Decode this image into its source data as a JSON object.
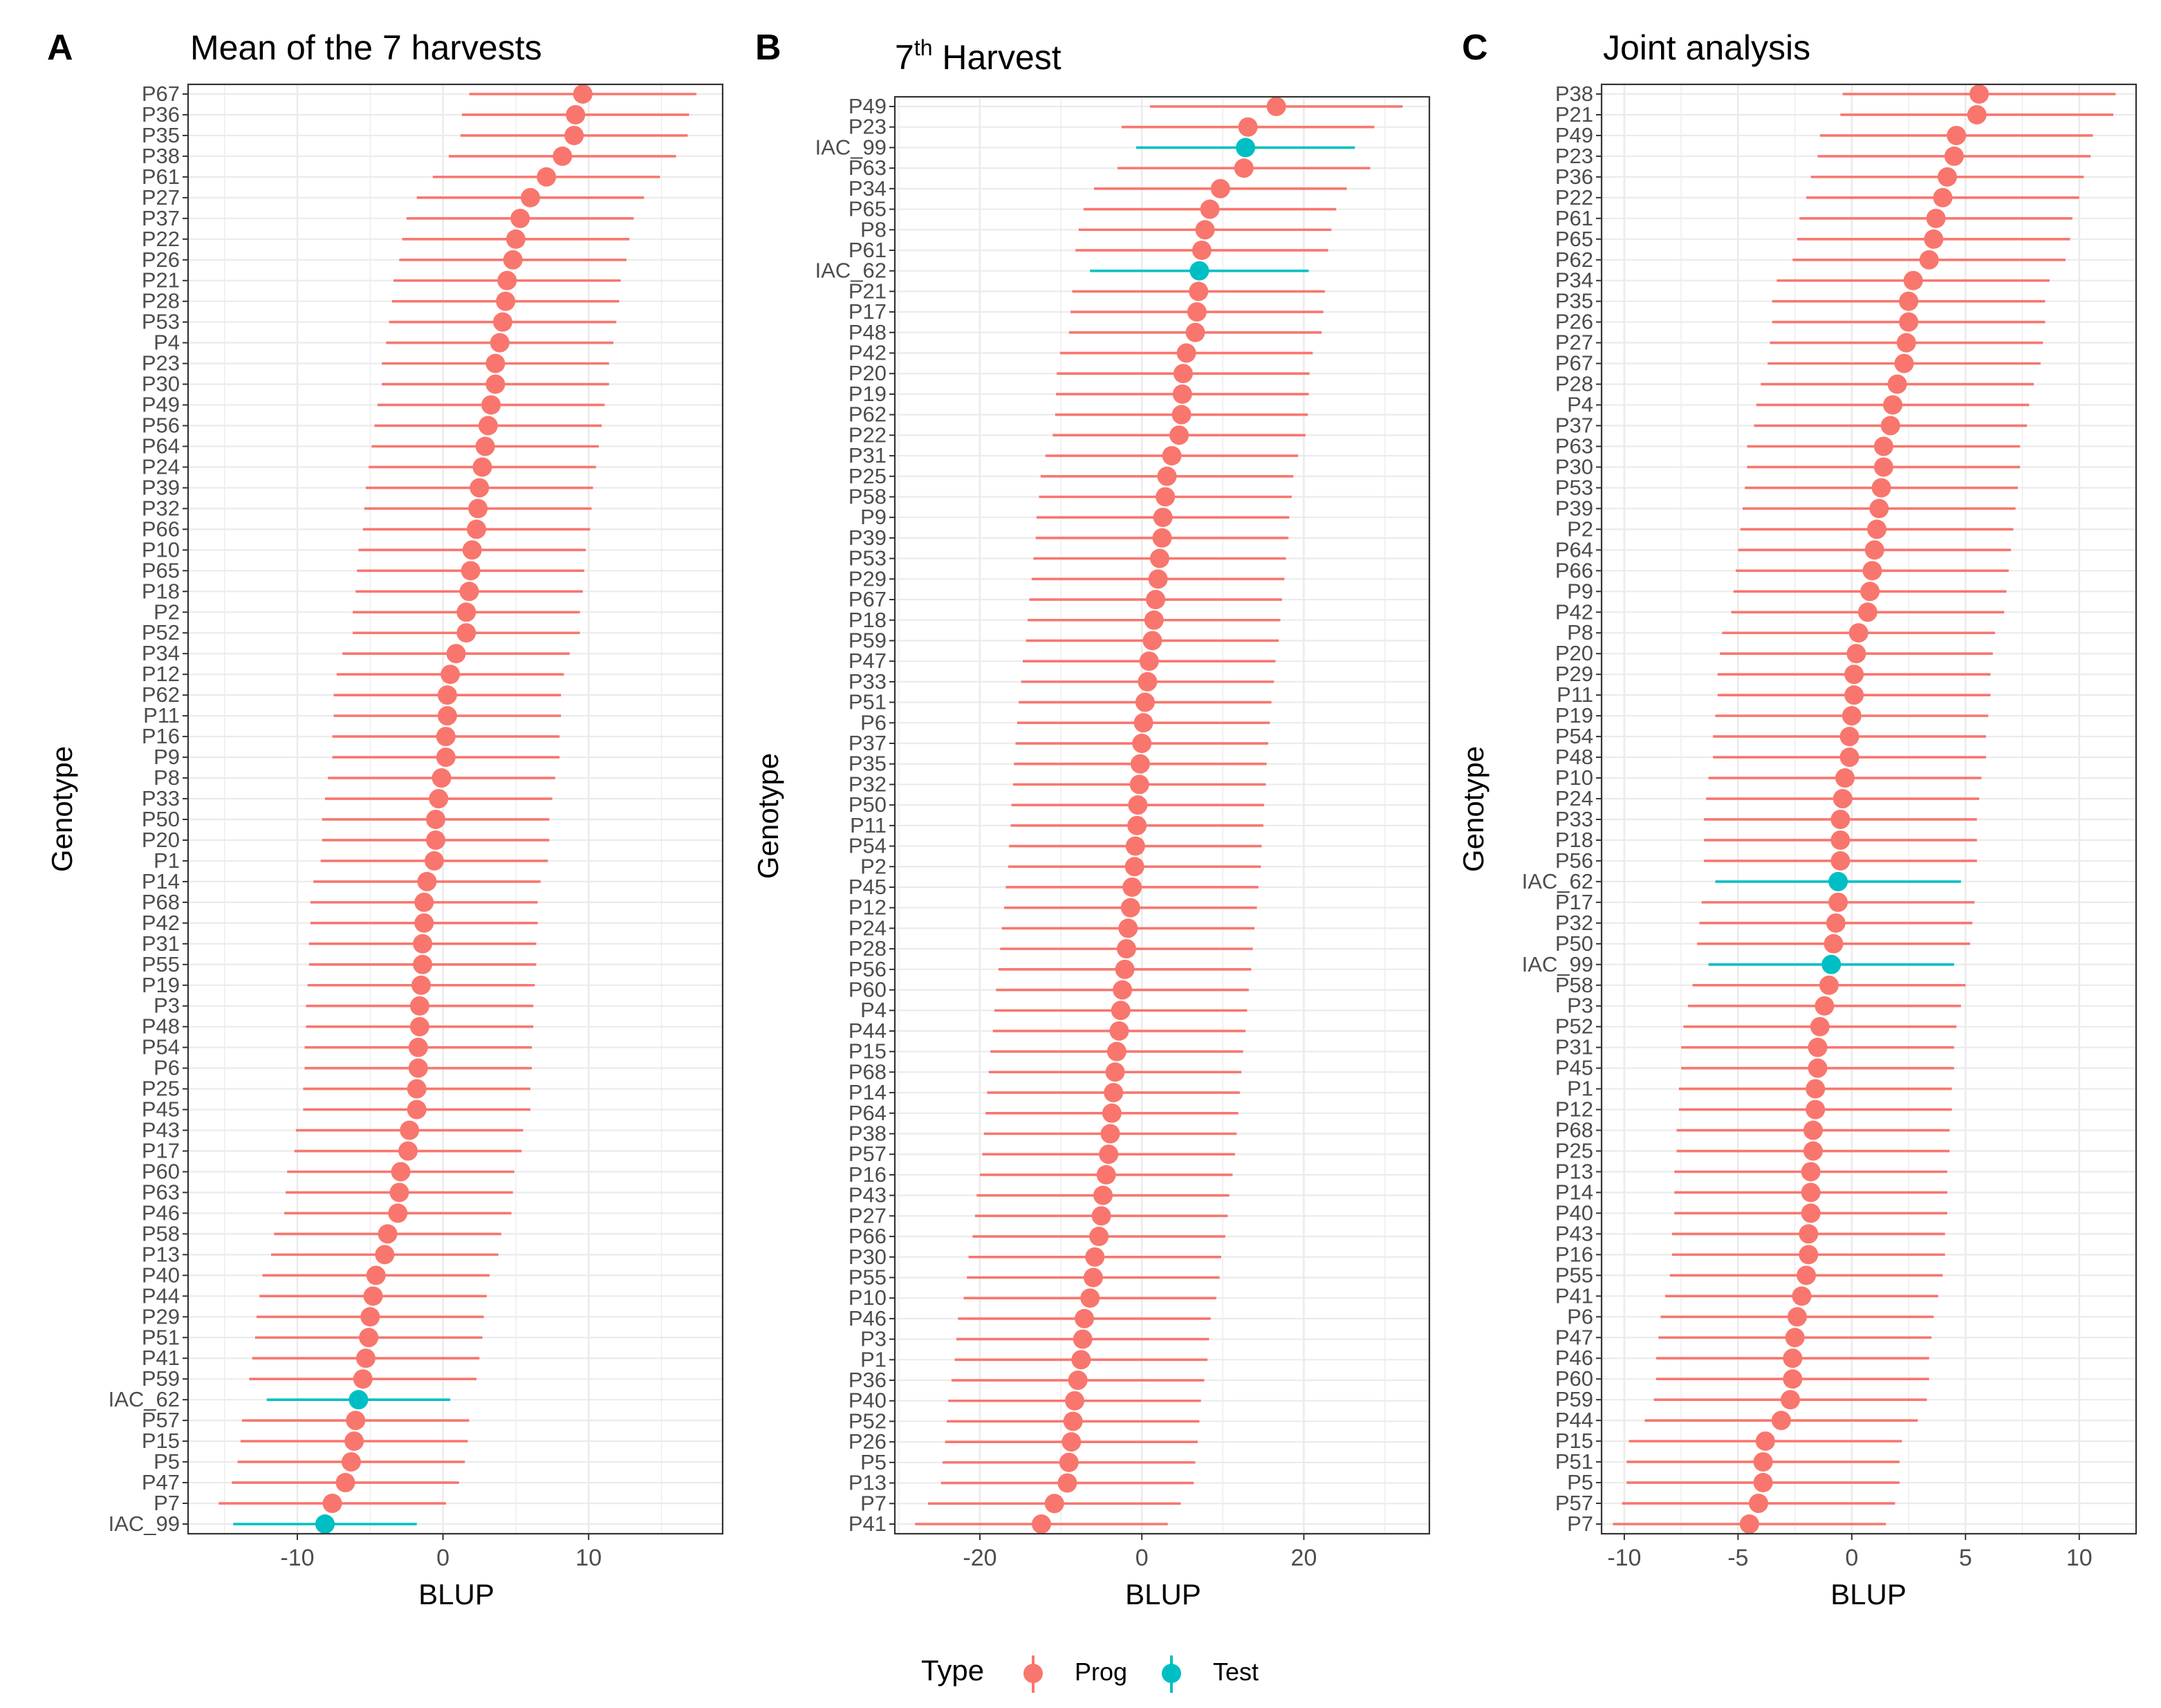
{
  "figure": {
    "y_axis_label": "Genotype",
    "x_axis_label": "BLUP",
    "legend": {
      "title": "Type",
      "entries": [
        {
          "label": "Prog",
          "color": "#F8766D"
        },
        {
          "label": "Test",
          "color": "#00BFC4"
        }
      ]
    },
    "colors": {
      "Prog": "#F8766D",
      "Test": "#00BFC4",
      "grid": "#ebebeb",
      "frame": "#333333"
    }
  },
  "chart_data": [
    {
      "type": "forest",
      "panel_letter": "A",
      "title": "Mean of the 7 harvests",
      "title_sup": "",
      "title_rest": "",
      "xlabel": "BLUP",
      "ylabel": "Genotype",
      "xlim": [
        -17.5,
        19.2
      ],
      "xticks": [
        -10,
        0,
        10
      ],
      "ci_halfwidth": 7.8,
      "test_halfwidth": 6.3,
      "genotypes": [
        "P67",
        "P36",
        "P35",
        "P38",
        "P61",
        "P27",
        "P37",
        "P22",
        "P26",
        "P21",
        "P28",
        "P53",
        "P4",
        "P23",
        "P30",
        "P49",
        "P56",
        "P64",
        "P24",
        "P39",
        "P32",
        "P66",
        "P10",
        "P65",
        "P18",
        "P2",
        "P52",
        "P34",
        "P12",
        "P62",
        "P11",
        "P16",
        "P9",
        "P8",
        "P33",
        "P50",
        "P20",
        "P1",
        "P14",
        "P68",
        "P42",
        "P31",
        "P55",
        "P19",
        "P3",
        "P48",
        "P54",
        "P6",
        "P25",
        "P45",
        "P43",
        "P17",
        "P60",
        "P63",
        "P46",
        "P58",
        "P13",
        "P40",
        "P44",
        "P29",
        "P51",
        "P41",
        "P59",
        "IAC_62",
        "P57",
        "P15",
        "P5",
        "P47",
        "P7",
        "IAC_99"
      ],
      "blup": [
        9.6,
        9.1,
        9.0,
        8.2,
        7.1,
        6.0,
        5.3,
        5.0,
        4.8,
        4.4,
        4.3,
        4.1,
        3.9,
        3.6,
        3.6,
        3.3,
        3.1,
        2.9,
        2.7,
        2.5,
        2.4,
        2.3,
        2.0,
        1.9,
        1.8,
        1.6,
        1.6,
        0.9,
        0.5,
        0.3,
        0.3,
        0.2,
        0.2,
        -0.1,
        -0.3,
        -0.5,
        -0.5,
        -0.6,
        -1.1,
        -1.3,
        -1.3,
        -1.4,
        -1.4,
        -1.5,
        -1.6,
        -1.6,
        -1.7,
        -1.7,
        -1.8,
        -1.8,
        -2.3,
        -2.4,
        -2.9,
        -3.0,
        -3.1,
        -3.8,
        -4.0,
        -4.6,
        -4.8,
        -5.0,
        -5.1,
        -5.3,
        -5.5,
        -5.8,
        -6.0,
        -6.1,
        -6.3,
        -6.7,
        -7.6,
        -8.1
      ],
      "types": [
        "Prog",
        "Prog",
        "Prog",
        "Prog",
        "Prog",
        "Prog",
        "Prog",
        "Prog",
        "Prog",
        "Prog",
        "Prog",
        "Prog",
        "Prog",
        "Prog",
        "Prog",
        "Prog",
        "Prog",
        "Prog",
        "Prog",
        "Prog",
        "Prog",
        "Prog",
        "Prog",
        "Prog",
        "Prog",
        "Prog",
        "Prog",
        "Prog",
        "Prog",
        "Prog",
        "Prog",
        "Prog",
        "Prog",
        "Prog",
        "Prog",
        "Prog",
        "Prog",
        "Prog",
        "Prog",
        "Prog",
        "Prog",
        "Prog",
        "Prog",
        "Prog",
        "Prog",
        "Prog",
        "Prog",
        "Prog",
        "Prog",
        "Prog",
        "Prog",
        "Prog",
        "Prog",
        "Prog",
        "Prog",
        "Prog",
        "Prog",
        "Prog",
        "Prog",
        "Prog",
        "Prog",
        "Prog",
        "Prog",
        "Test",
        "Prog",
        "Prog",
        "Prog",
        "Prog",
        "Prog",
        "Test"
      ]
    },
    {
      "type": "forest",
      "panel_letter": "B",
      "title": "7",
      "title_sup": "th",
      "title_rest": " Harvest",
      "xlabel": "BLUP",
      "ylabel": "Genotype",
      "xlim": [
        -30.5,
        35.5
      ],
      "xticks": [
        -20,
        0,
        20
      ],
      "ci_halfwidth": 15.6,
      "test_halfwidth": 13.5,
      "genotypes": [
        "P49",
        "P23",
        "IAC_99",
        "P63",
        "P34",
        "P65",
        "P8",
        "P61",
        "IAC_62",
        "P21",
        "P17",
        "P48",
        "P42",
        "P20",
        "P19",
        "P62",
        "P22",
        "P31",
        "P25",
        "P58",
        "P9",
        "P39",
        "P53",
        "P29",
        "P67",
        "P18",
        "P59",
        "P47",
        "P33",
        "P51",
        "P6",
        "P37",
        "P35",
        "P32",
        "P50",
        "P11",
        "P54",
        "P2",
        "P45",
        "P12",
        "P24",
        "P28",
        "P56",
        "P60",
        "P4",
        "P44",
        "P15",
        "P68",
        "P14",
        "P64",
        "P38",
        "P57",
        "P16",
        "P43",
        "P27",
        "P66",
        "P30",
        "P55",
        "P10",
        "P46",
        "P3",
        "P1",
        "P36",
        "P40",
        "P52",
        "P26",
        "P5",
        "P13",
        "P7",
        "P41"
      ],
      "blup": [
        16.6,
        13.1,
        12.8,
        12.6,
        9.7,
        8.4,
        7.8,
        7.4,
        7.1,
        7.0,
        6.8,
        6.6,
        5.5,
        5.1,
        5.0,
        4.9,
        4.6,
        3.7,
        3.1,
        2.9,
        2.6,
        2.5,
        2.2,
        2.0,
        1.7,
        1.5,
        1.3,
        0.9,
        0.7,
        0.4,
        0.2,
        0.0,
        -0.2,
        -0.3,
        -0.5,
        -0.6,
        -0.8,
        -0.9,
        -1.2,
        -1.4,
        -1.7,
        -1.9,
        -2.1,
        -2.4,
        -2.6,
        -2.8,
        -3.1,
        -3.3,
        -3.5,
        -3.7,
        -3.9,
        -4.1,
        -4.4,
        -4.8,
        -5.0,
        -5.3,
        -5.8,
        -6.0,
        -6.4,
        -7.1,
        -7.3,
        -7.5,
        -7.9,
        -8.3,
        -8.5,
        -8.7,
        -9.0,
        -9.2,
        -10.8,
        -12.4
      ],
      "types": [
        "Prog",
        "Prog",
        "Test",
        "Prog",
        "Prog",
        "Prog",
        "Prog",
        "Prog",
        "Test",
        "Prog",
        "Prog",
        "Prog",
        "Prog",
        "Prog",
        "Prog",
        "Prog",
        "Prog",
        "Prog",
        "Prog",
        "Prog",
        "Prog",
        "Prog",
        "Prog",
        "Prog",
        "Prog",
        "Prog",
        "Prog",
        "Prog",
        "Prog",
        "Prog",
        "Prog",
        "Prog",
        "Prog",
        "Prog",
        "Prog",
        "Prog",
        "Prog",
        "Prog",
        "Prog",
        "Prog",
        "Prog",
        "Prog",
        "Prog",
        "Prog",
        "Prog",
        "Prog",
        "Prog",
        "Prog",
        "Prog",
        "Prog",
        "Prog",
        "Prog",
        "Prog",
        "Prog",
        "Prog",
        "Prog",
        "Prog",
        "Prog",
        "Prog",
        "Prog",
        "Prog",
        "Prog",
        "Prog",
        "Prog",
        "Prog",
        "Prog",
        "Prog",
        "Prog",
        "Prog",
        "Prog"
      ]
    },
    {
      "type": "forest",
      "panel_letter": "C",
      "title": "Joint analysis",
      "title_sup": "",
      "title_rest": "",
      "xlabel": "BLUP",
      "ylabel": "Genotype",
      "xlim": [
        -11.0,
        12.5
      ],
      "xticks": [
        -10,
        -5,
        0,
        5,
        10
      ],
      "ci_halfwidth": 6.0,
      "test_halfwidth": 5.4,
      "genotypes": [
        "P38",
        "P21",
        "P49",
        "P23",
        "P36",
        "P22",
        "P61",
        "P65",
        "P62",
        "P34",
        "P35",
        "P26",
        "P27",
        "P67",
        "P28",
        "P4",
        "P37",
        "P63",
        "P30",
        "P53",
        "P39",
        "P2",
        "P64",
        "P66",
        "P9",
        "P42",
        "P8",
        "P20",
        "P29",
        "P11",
        "P19",
        "P54",
        "P48",
        "P10",
        "P24",
        "P33",
        "P18",
        "P56",
        "IAC_62",
        "P17",
        "P32",
        "P50",
        "IAC_99",
        "P58",
        "P3",
        "P52",
        "P31",
        "P45",
        "P1",
        "P12",
        "P68",
        "P25",
        "P13",
        "P14",
        "P40",
        "P43",
        "P16",
        "P55",
        "P41",
        "P6",
        "P47",
        "P46",
        "P60",
        "P59",
        "P44",
        "P15",
        "P51",
        "P5",
        "P57",
        "P7"
      ],
      "blup": [
        5.6,
        5.5,
        4.6,
        4.5,
        4.2,
        4.0,
        3.7,
        3.6,
        3.4,
        2.7,
        2.5,
        2.5,
        2.4,
        2.3,
        2.0,
        1.8,
        1.7,
        1.4,
        1.4,
        1.3,
        1.2,
        1.1,
        1.0,
        0.9,
        0.8,
        0.7,
        0.3,
        0.2,
        0.1,
        0.1,
        0.0,
        -0.1,
        -0.1,
        -0.3,
        -0.4,
        -0.5,
        -0.5,
        -0.5,
        -0.6,
        -0.6,
        -0.7,
        -0.8,
        -0.9,
        -1.0,
        -1.2,
        -1.4,
        -1.5,
        -1.5,
        -1.6,
        -1.6,
        -1.7,
        -1.7,
        -1.8,
        -1.8,
        -1.8,
        -1.9,
        -1.9,
        -2.0,
        -2.2,
        -2.4,
        -2.5,
        -2.6,
        -2.6,
        -2.7,
        -3.1,
        -3.8,
        -3.9,
        -3.9,
        -4.1,
        -4.5
      ],
      "types": [
        "Prog",
        "Prog",
        "Prog",
        "Prog",
        "Prog",
        "Prog",
        "Prog",
        "Prog",
        "Prog",
        "Prog",
        "Prog",
        "Prog",
        "Prog",
        "Prog",
        "Prog",
        "Prog",
        "Prog",
        "Prog",
        "Prog",
        "Prog",
        "Prog",
        "Prog",
        "Prog",
        "Prog",
        "Prog",
        "Prog",
        "Prog",
        "Prog",
        "Prog",
        "Prog",
        "Prog",
        "Prog",
        "Prog",
        "Prog",
        "Prog",
        "Prog",
        "Prog",
        "Prog",
        "Test",
        "Prog",
        "Prog",
        "Prog",
        "Test",
        "Prog",
        "Prog",
        "Prog",
        "Prog",
        "Prog",
        "Prog",
        "Prog",
        "Prog",
        "Prog",
        "Prog",
        "Prog",
        "Prog",
        "Prog",
        "Prog",
        "Prog",
        "Prog",
        "Prog",
        "Prog",
        "Prog",
        "Prog",
        "Prog",
        "Prog",
        "Prog",
        "Prog",
        "Prog",
        "Prog",
        "Prog"
      ]
    }
  ]
}
